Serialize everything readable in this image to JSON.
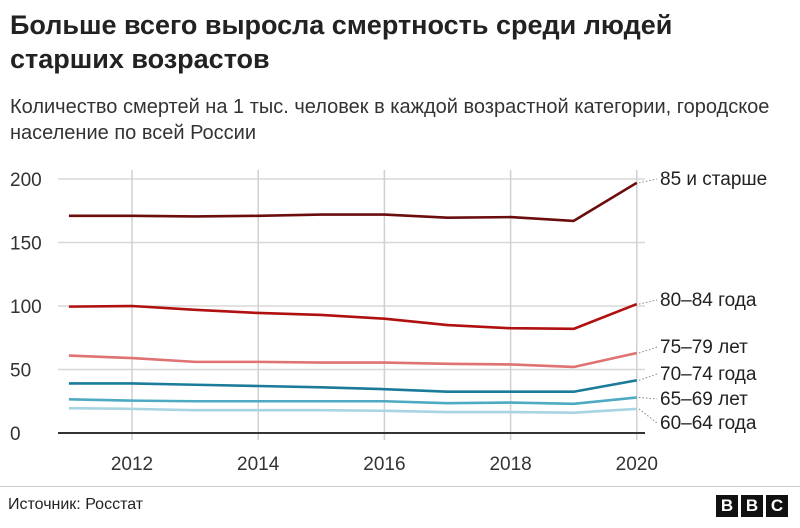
{
  "title": "Больше всего выросла смертность среди людей старших возрастов",
  "subtitle": "Количество смертей на 1 тыс. человек в каждой возрастной категории, городское население по всей России",
  "source": "Источник: Росстат",
  "logo": [
    "B",
    "B",
    "C"
  ],
  "chart_data": {
    "type": "line",
    "x": [
      2011,
      2012,
      2013,
      2014,
      2015,
      2016,
      2017,
      2018,
      2019,
      2020
    ],
    "xticks": [
      2012,
      2014,
      2016,
      2018,
      2020
    ],
    "yticks": [
      0,
      50,
      100,
      150,
      200
    ],
    "ylim": [
      0,
      200
    ],
    "grid": true,
    "legend": "right, inline labels",
    "series": [
      {
        "name": "85 и старше",
        "color": "#6b0d0d",
        "values": [
          171,
          171,
          170.5,
          171,
          172,
          172,
          169.5,
          170,
          167,
          197
        ]
      },
      {
        "name": "80–84 года",
        "color": "#b01010",
        "values": [
          99.5,
          100,
          97,
          94.5,
          93,
          90,
          85,
          82.5,
          82,
          101.5
        ]
      },
      {
        "name": "75–79 лет",
        "color": "#e07272",
        "values": [
          61,
          59,
          56,
          56,
          55.5,
          55.5,
          54.5,
          54,
          52,
          63
        ]
      },
      {
        "name": "70–74 года",
        "color": "#1a7b9b",
        "values": [
          39,
          39,
          38,
          37,
          36,
          34.5,
          32.5,
          32.5,
          32.5,
          41.5
        ]
      },
      {
        "name": "65–69 лет",
        "color": "#4eaac2",
        "values": [
          26.5,
          25.5,
          25,
          25,
          25,
          25,
          23.5,
          24,
          23,
          28
        ]
      },
      {
        "name": "60–64 года",
        "color": "#a9d4e1",
        "values": [
          19.5,
          19,
          18,
          18,
          18,
          17.5,
          16.5,
          16.5,
          16,
          19
        ]
      }
    ]
  }
}
